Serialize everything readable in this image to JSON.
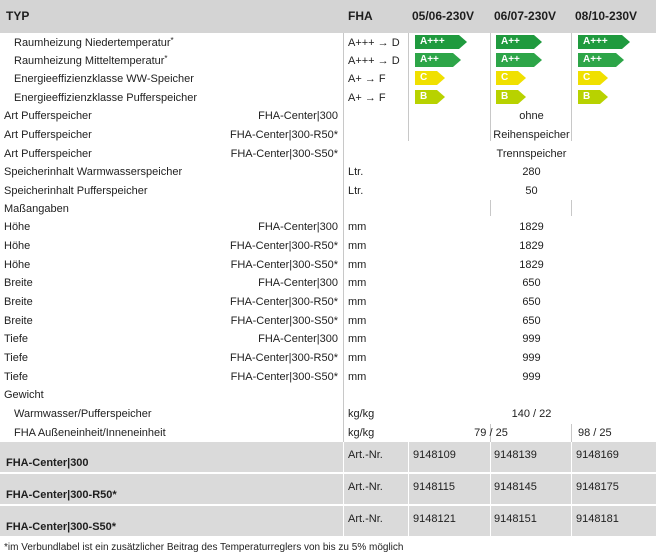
{
  "header": {
    "typ": "TYP",
    "fha": "FHA",
    "col1": "05/06-230V",
    "col2": "06/07-230V",
    "col3": "08/10-230V"
  },
  "energy": [
    {
      "label": "Raumheizung Niedertemperatur",
      "sup": "*",
      "range": "A+++ → D",
      "classes": [
        "A+++",
        "A++",
        "A+++"
      ],
      "color": "#1f9a3e",
      "width": [
        44,
        38,
        44
      ]
    },
    {
      "label": "Raumheizung Mitteltemperatur",
      "sup": "*",
      "range": "A+++ → D",
      "classes": [
        "A++",
        "A++",
        "A++"
      ],
      "color": "#2da548",
      "width": [
        38,
        38,
        38
      ]
    },
    {
      "label": "Energieeffizienzklasse WW-Speicher",
      "sup": "",
      "range": "A+ → F",
      "classes": [
        "C",
        "C",
        "C"
      ],
      "color": "#f0e000",
      "width": [
        22,
        22,
        22
      ]
    },
    {
      "label": "Energieeffizienzklasse Pufferspeicher",
      "sup": "",
      "range": "A+ → F",
      "classes": [
        "B",
        "B",
        "B"
      ],
      "color": "#b8d200",
      "width": [
        22,
        22,
        22
      ]
    }
  ],
  "art_puffer": [
    {
      "label": "Art Pufferspeicher",
      "sub": "FHA-Center|300",
      "value": "ohne"
    },
    {
      "label": "Art Pufferspeicher",
      "sub": "FHA-Center|300-R50*",
      "value": "Reihenspeicher"
    },
    {
      "label": "Art Pufferspeicher",
      "sub": "FHA-Center|300-S50*",
      "value": "Trennspeicher"
    }
  ],
  "inhalt": [
    {
      "label": "Speicherinhalt Warmwasserspeicher",
      "unit": "Ltr.",
      "value": "280"
    },
    {
      "label": "Speicherinhalt Pufferspeicher",
      "unit": "Ltr.",
      "value": "50"
    }
  ],
  "mass_heading": "Maßangaben",
  "mass": [
    {
      "label": "Höhe",
      "sub": "FHA-Center|300",
      "unit": "mm",
      "value": "1829"
    },
    {
      "label": "Höhe",
      "sub": "FHA-Center|300-R50*",
      "unit": "mm",
      "value": "1829"
    },
    {
      "label": "Höhe",
      "sub": "FHA-Center|300-S50*",
      "unit": "mm",
      "value": "1829"
    },
    {
      "label": "Breite",
      "sub": "FHA-Center|300",
      "unit": "mm",
      "value": "650"
    },
    {
      "label": "Breite",
      "sub": "FHA-Center|300-R50*",
      "unit": "mm",
      "value": "650"
    },
    {
      "label": "Breite",
      "sub": "FHA-Center|300-S50*",
      "unit": "mm",
      "value": "650"
    },
    {
      "label": "Tiefe",
      "sub": "FHA-Center|300",
      "unit": "mm",
      "value": "999"
    },
    {
      "label": "Tiefe",
      "sub": "FHA-Center|300-R50*",
      "unit": "mm",
      "value": "999"
    },
    {
      "label": "Tiefe",
      "sub": "FHA-Center|300-S50*",
      "unit": "mm",
      "value": "999"
    }
  ],
  "gewicht_heading": "Gewicht",
  "gewicht": [
    {
      "label": "Warmwasser/Pufferspeicher",
      "unit": "kg/kg",
      "value": "140 / 22"
    },
    {
      "label": "FHA Außeneinheit/Inneneinheit",
      "unit": "kg/kg",
      "value_a": "79 / 25",
      "value_b": "98 / 25"
    }
  ],
  "artikel": [
    {
      "name": "FHA-Center|300",
      "unit": "Art.-Nr.",
      "values": [
        "9148109",
        "9148139",
        "9148169"
      ]
    },
    {
      "name": "FHA-Center|300-R50*",
      "unit": "Art.-Nr.",
      "values": [
        "9148115",
        "9148145",
        "9148175"
      ]
    },
    {
      "name": "FHA-Center|300-S50*",
      "unit": "Art.-Nr.",
      "values": [
        "9148121",
        "9148151",
        "9148181"
      ]
    }
  ],
  "footnote": "*im Verbundlabel ist ein zusätzlicher Beitrag des Temperaturreglers von bis zu 5% möglich"
}
